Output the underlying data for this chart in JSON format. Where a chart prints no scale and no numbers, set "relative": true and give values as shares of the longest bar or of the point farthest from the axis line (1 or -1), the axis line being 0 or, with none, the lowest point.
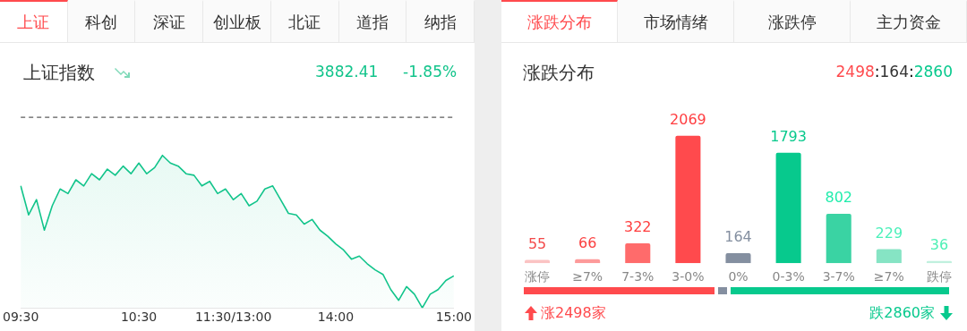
{
  "chart_data": [
    {
      "type": "area",
      "title": "上证指数",
      "annotations": [
        "上证",
        "科创",
        "深证",
        "创业板",
        "北证",
        "道指",
        "纳指",
        "3882.41",
        "-1.85%"
      ],
      "relative": true,
      "color": "#12c48b",
      "grid": false,
      "legend": false,
      "categories": [
        "09:30",
        null,
        null,
        null,
        null,
        null,
        null,
        null,
        null,
        null,
        null,
        null,
        null,
        null,
        null,
        "10:30",
        null,
        null,
        null,
        null,
        null,
        null,
        null,
        null,
        null,
        null,
        null,
        "11:30/13:00",
        null,
        null,
        null,
        null,
        null,
        null,
        null,
        null,
        null,
        null,
        null,
        null,
        "14:00",
        null,
        null,
        null,
        null,
        null,
        null,
        null,
        null,
        null,
        null,
        null,
        null,
        null,
        null,
        "15:00"
      ],
      "values": [
        0.8,
        0.61,
        0.71,
        0.51,
        0.67,
        0.78,
        0.75,
        0.84,
        0.8,
        0.88,
        0.84,
        0.91,
        0.87,
        0.93,
        0.88,
        0.95,
        0.88,
        0.92,
        1.0,
        0.95,
        0.93,
        0.88,
        0.87,
        0.8,
        0.83,
        0.75,
        0.78,
        0.71,
        0.75,
        0.67,
        0.7,
        0.78,
        0.8,
        0.71,
        0.62,
        0.61,
        0.55,
        0.58,
        0.51,
        0.47,
        0.42,
        0.38,
        0.32,
        0.34,
        0.29,
        0.25,
        0.22,
        0.12,
        0.05,
        0.14,
        0.09,
        0,
        0.09,
        0.12,
        0.18,
        0.21
      ],
      "ref_lines": [
        {
          "axis": "y",
          "value": 1.25,
          "line_style": "dashed",
          "color": "#333333"
        }
      ]
    },
    {
      "type": "bar",
      "title": "涨跌分布",
      "annotations": [
        "涨跌分布",
        "市场情绪",
        "涨跌停",
        "主力资金",
        "2498:164:2860",
        "涨2498家",
        "跌2860家"
      ],
      "data_labels": true,
      "grid": false,
      "legend": false,
      "categories": [
        "涨停",
        "≥7%",
        "7-3%",
        "3-0%",
        "0%",
        "0-3%",
        "3-7%",
        "≥7%",
        "跌停"
      ],
      "values": [
        55,
        66,
        322,
        2069,
        164,
        1793,
        802,
        229,
        36
      ],
      "colors": [
        "#fbc3c3",
        "#fd9a9a",
        "#ff6b6b",
        "#ff4a4d",
        "#848fa0",
        "#07c98d",
        "#3ad3a3",
        "#86e4c4",
        "#c0f0de"
      ]
    }
  ]
}
